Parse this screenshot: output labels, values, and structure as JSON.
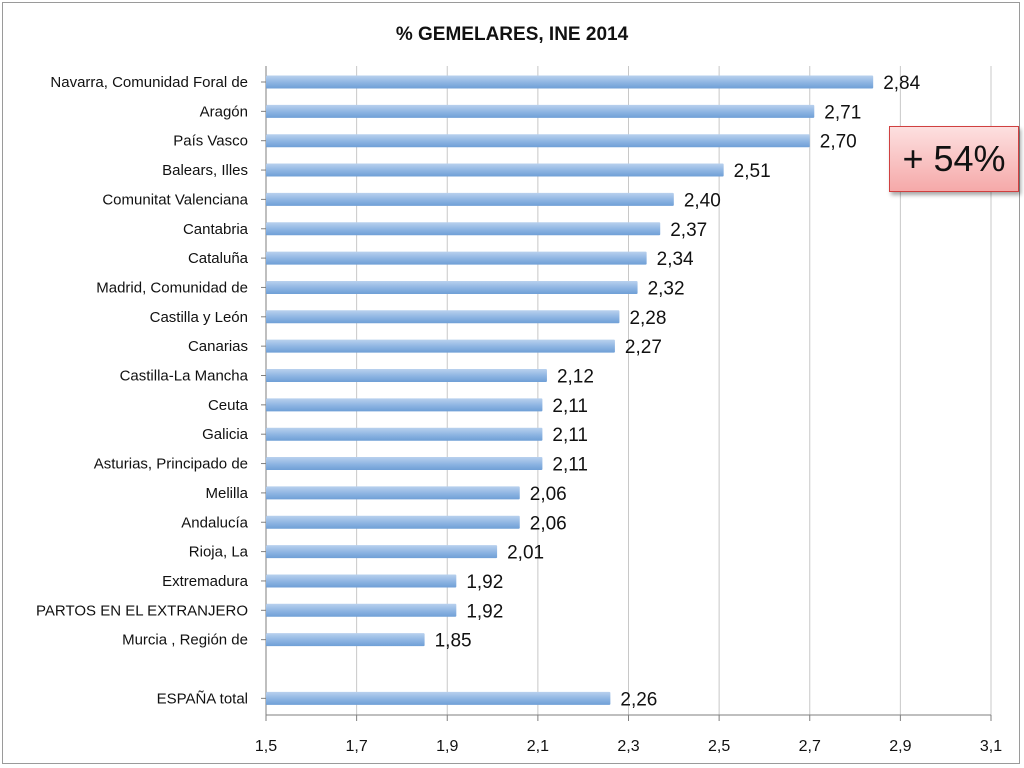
{
  "chart_data": {
    "type": "bar",
    "orientation": "horizontal",
    "title": "% GEMELARES, INE 2014",
    "xlim": [
      1.5,
      3.1
    ],
    "ticks": [
      1.5,
      1.7,
      1.9,
      2.1,
      2.3,
      2.5,
      2.7,
      2.9,
      3.1
    ],
    "tick_labels": [
      "1,5",
      "1,7",
      "1,9",
      "2,1",
      "2,3",
      "2,5",
      "2,7",
      "2,9",
      "3,1"
    ],
    "grid": "vertical",
    "bar_color": "#8db4e2",
    "categories": [
      "Navarra, Comunidad Foral de",
      "Aragón",
      "País Vasco",
      "Balears, Illes",
      "Comunitat Valenciana",
      "Cantabria",
      "Cataluña",
      "Madrid, Comunidad de",
      "Castilla y León",
      "Canarias",
      "Castilla-La Mancha",
      "Ceuta",
      "Galicia",
      "Asturias, Principado de",
      "Melilla",
      "Andalucía",
      "Rioja, La",
      "Extremadura",
      "PARTOS EN EL EXTRANJERO",
      "Murcia , Región de",
      "",
      "ESPAÑA total"
    ],
    "values": [
      2.84,
      2.71,
      2.7,
      2.51,
      2.4,
      2.37,
      2.34,
      2.32,
      2.28,
      2.27,
      2.12,
      2.11,
      2.11,
      2.11,
      2.06,
      2.06,
      2.01,
      1.92,
      1.92,
      1.85,
      null,
      2.26
    ],
    "value_labels": [
      "2,84",
      "2,71",
      "2,70",
      "2,51",
      "2,40",
      "2,37",
      "2,34",
      "2,32",
      "2,28",
      "2,27",
      "2,12",
      "2,11",
      "2,11",
      "2,11",
      "2,06",
      "2,06",
      "2,01",
      "1,92",
      "1,92",
      "1,85",
      "",
      "2,26"
    ]
  },
  "callout": {
    "text": "+ 54%"
  }
}
